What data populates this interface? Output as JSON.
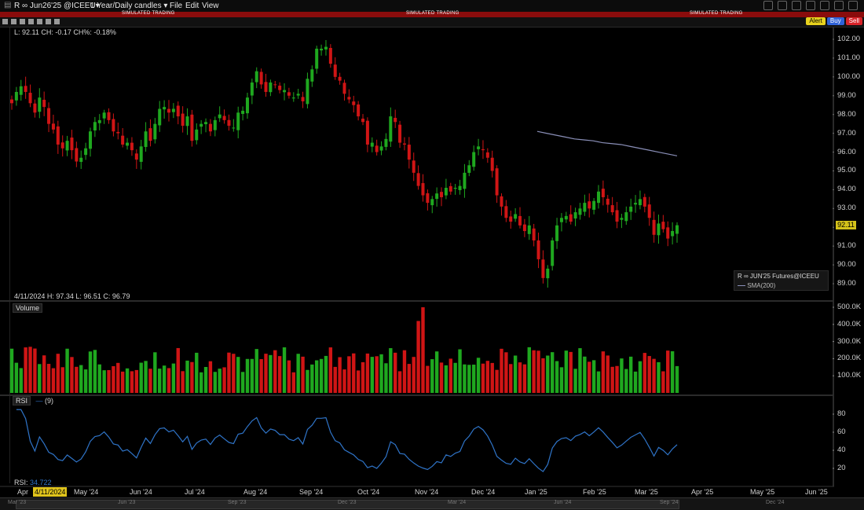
{
  "window": {
    "symbol_label": "R ∞ Jun26'25 @ICEEU▾",
    "timeframe_label": "1 Year/Daily candles ▾",
    "menu": [
      "File",
      "Edit",
      "View"
    ],
    "sim_text": "SIMULATED TRADING"
  },
  "order_buttons": {
    "alert": "Alert",
    "buy": "Buy",
    "sell": "Sell"
  },
  "price_panel": {
    "info_line": "L: 92.11  CH: -0.17  CH%: -0.18%",
    "bar_info": "4/11/2024  H: 97.34  L: 96.51  C: 96.79",
    "last_price": "92.11",
    "y_ticks": [
      "102.00",
      "101.00",
      "100.00",
      "99.00",
      "98.00",
      "97.00",
      "96.00",
      "95.00",
      "94.00",
      "93.00",
      "92.00",
      "91.00",
      "90.00",
      "89.00"
    ],
    "legend_title": "R ∞ JUN'25 Futures@ICEEU",
    "legend_sma": "SMA(200)",
    "colors": {
      "up": "#1fa81f",
      "down": "#d01515",
      "sma": "#8a8fb8"
    }
  },
  "volume_panel": {
    "title": "Volume",
    "y_ticks": [
      "500.0K",
      "400.0K",
      "300.0K",
      "200.0K",
      "100.0K"
    ]
  },
  "rsi_panel": {
    "title": "RSI",
    "param": "(9)",
    "value_label": "RSI:",
    "value": "34.722",
    "y_ticks": [
      "80",
      "60",
      "40",
      "20"
    ],
    "line_color": "#2f74c8"
  },
  "x_axis": {
    "labels": [
      "Apr",
      "May '24",
      "Jun '24",
      "Jul '24",
      "Aug '24",
      "Sep '24",
      "Oct '24",
      "Nov '24",
      "Dec '24",
      "Jan '25",
      "Feb '25",
      "Mar '25",
      "Apr '25",
      "May '25",
      "Jun '25"
    ],
    "date_badge": "4/11/2024"
  },
  "navigator": {
    "labels": [
      "Mar '23",
      "Jun '23",
      "Sep '23",
      "Dec '23",
      "Mar '24",
      "Jun '24",
      "Sep '24",
      "Dec '24"
    ]
  },
  "chart_data": {
    "type": "candlestick",
    "series_close": [
      98.6,
      99.2,
      99.5,
      99.2,
      98.6,
      98.1,
      98.9,
      98.4,
      97.5,
      97.2,
      96.4,
      96.2,
      96.6,
      96.1,
      95.5,
      95.7,
      96.2,
      97.1,
      97.6,
      97.7,
      98.1,
      97.7,
      97.1,
      97.0,
      96.4,
      96.5,
      96.1,
      95.6,
      96.3,
      97.1,
      96.6,
      97.5,
      98.3,
      98.4,
      98.1,
      98.3,
      97.9,
      97.4,
      97.9,
      96.6,
      97.2,
      97.5,
      97.6,
      97.1,
      97.7,
      98.0,
      97.7,
      97.4,
      97.3,
      98.1,
      98.2,
      98.9,
      99.7,
      100.3,
      99.6,
      99.2,
      99.7,
      99.6,
      99.3,
      99.3,
      99.0,
      98.9,
      99.1,
      98.7,
      99.9,
      100.4,
      101.5,
      101.5,
      101.6,
      100.7,
      100.0,
      99.8,
      99.1,
      98.8,
      98.5,
      97.9,
      97.6,
      96.4,
      96.5,
      96.0,
      96.3,
      96.7,
      97.9,
      97.6,
      96.5,
      96.4,
      95.6,
      94.9,
      94.2,
      93.7,
      93.3,
      93.5,
      93.8,
      93.6,
      94.1,
      93.9,
      94.1,
      94.2,
      94.9,
      95.3,
      96.0,
      96.3,
      96.1,
      95.7,
      95.0,
      93.7,
      93.1,
      92.5,
      92.3,
      92.7,
      92.1,
      91.8,
      92.1,
      91.3,
      90.3,
      89.3,
      89.8,
      91.3,
      92.1,
      92.5,
      92.6,
      92.3,
      92.8,
      93.0,
      93.3,
      93.0,
      93.4,
      93.9,
      93.6,
      93.2,
      92.8,
      92.3,
      92.5,
      92.8,
      93.1,
      93.3,
      93.5,
      93.1,
      92.5,
      91.6,
      92.2,
      91.9,
      91.4,
      91.8,
      92.11
    ],
    "y_range": [
      88.5,
      102.5
    ],
    "sma200": [
      97.1,
      97.0,
      96.9,
      96.8,
      96.7,
      96.65,
      96.6,
      96.5,
      96.45,
      96.4,
      96.3,
      96.2,
      96.1,
      96.0,
      95.9,
      95.8
    ],
    "volume_ylim": [
      0,
      520000
    ],
    "rsi_ylim": [
      0,
      100
    ]
  }
}
